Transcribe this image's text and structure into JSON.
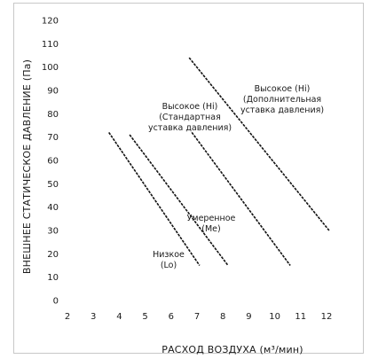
{
  "chart_data": {
    "type": "line",
    "title": "",
    "xlabel": "РАСХОД ВОЗДУХА (м³/мин)",
    "ylabel": "ВНЕШНЕЕ СТАТИЧЕСКОЕ ДАВЛЕНИЕ (Па)",
    "xlim": [
      2,
      12
    ],
    "ylim": [
      0,
      120
    ],
    "xticks": [
      2,
      3,
      4,
      5,
      6,
      7,
      8,
      9,
      10,
      11,
      12
    ],
    "yticks": [
      0,
      10,
      20,
      30,
      40,
      50,
      60,
      70,
      80,
      90,
      100,
      110,
      120
    ],
    "grid": false,
    "legend": "none",
    "series": [
      {
        "label_lines": [
          "Низкое",
          "(Lo)"
        ],
        "x": [
          3.6,
          7.1
        ],
        "y": [
          72,
          15
        ]
      },
      {
        "label_lines": [
          "Умеренное",
          "(Me)"
        ],
        "x": [
          4.4,
          8.2
        ],
        "y": [
          71,
          15
        ]
      },
      {
        "label_lines": [
          "Высокое (Hi)",
          "(Стандартная",
          "уставка давления)"
        ],
        "x": [
          6.8,
          10.6
        ],
        "y": [
          72,
          15
        ]
      },
      {
        "label_lines": [
          "Высокое (Hi)",
          "(Дополнительная",
          "уставка давления)"
        ],
        "x": [
          6.7,
          12.1
        ],
        "y": [
          104,
          30
        ]
      }
    ]
  }
}
